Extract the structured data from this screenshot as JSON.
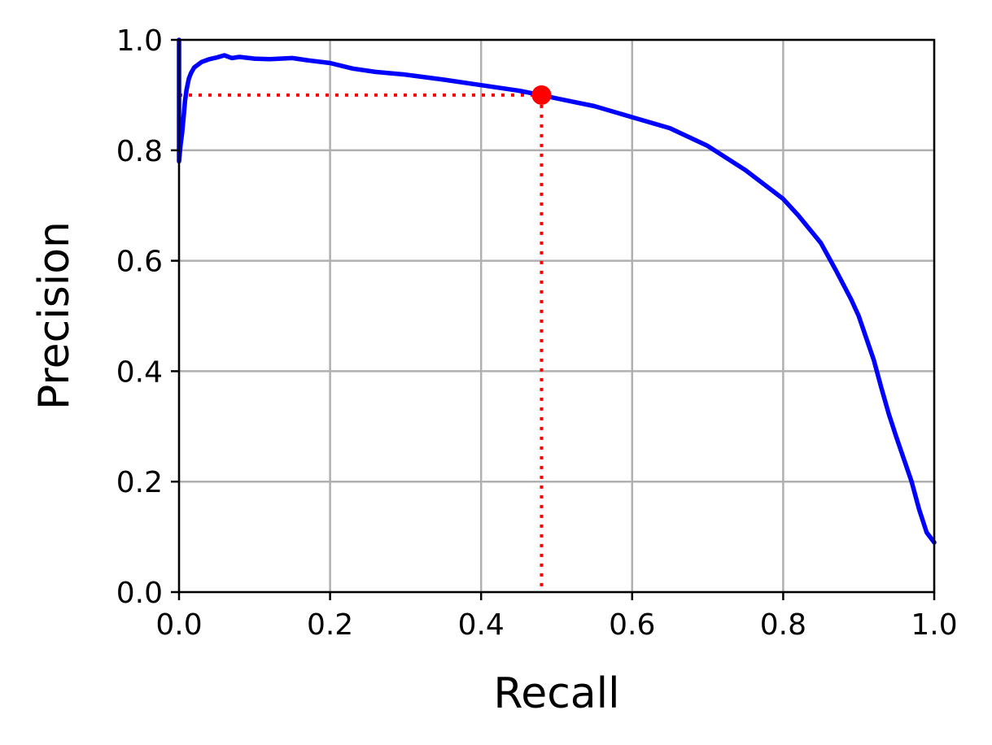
{
  "chart_data": {
    "type": "line",
    "title": "",
    "xlabel": "Recall",
    "ylabel": "Precision",
    "xlim": [
      0,
      1
    ],
    "ylim": [
      0,
      1
    ],
    "xticks": [
      "0.0",
      "0.2",
      "0.4",
      "0.6",
      "0.8",
      "1.0"
    ],
    "yticks": [
      "0.0",
      "0.2",
      "0.4",
      "0.6",
      "0.8",
      "1.0"
    ],
    "grid": true,
    "series": [
      {
        "color": "#0000ff",
        "x": [
          0.0,
          0.0,
          0.002,
          0.004,
          0.006,
          0.008,
          0.01,
          0.013,
          0.016,
          0.02,
          0.025,
          0.03,
          0.04,
          0.05,
          0.06,
          0.07,
          0.08,
          0.1,
          0.12,
          0.15,
          0.17,
          0.2,
          0.23,
          0.26,
          0.3,
          0.35,
          0.4,
          0.45,
          0.48,
          0.5,
          0.55,
          0.6,
          0.65,
          0.7,
          0.75,
          0.8,
          0.82,
          0.85,
          0.87,
          0.89,
          0.9,
          0.91,
          0.92,
          0.93,
          0.94,
          0.95,
          0.96,
          0.97,
          0.98,
          0.99,
          1.0
        ],
        "y": [
          1.0,
          0.78,
          0.81,
          0.83,
          0.86,
          0.89,
          0.91,
          0.93,
          0.94,
          0.95,
          0.955,
          0.96,
          0.965,
          0.968,
          0.972,
          0.967,
          0.969,
          0.966,
          0.965,
          0.967,
          0.963,
          0.958,
          0.948,
          0.942,
          0.937,
          0.928,
          0.918,
          0.908,
          0.9,
          0.894,
          0.88,
          0.86,
          0.84,
          0.808,
          0.764,
          0.712,
          0.682,
          0.632,
          0.582,
          0.53,
          0.5,
          0.46,
          0.42,
          0.37,
          0.322,
          0.28,
          0.24,
          0.2,
          0.15,
          0.108,
          0.09
        ]
      }
    ],
    "marker": {
      "x": 0.48,
      "y": 0.9,
      "color": "#ff0000"
    },
    "reference_lines": {
      "x": 0.48,
      "y": 0.9,
      "color": "#ff0000",
      "style": "dotted"
    },
    "colors": {
      "grid": "#b0b0b0",
      "axes": "#000000"
    }
  }
}
